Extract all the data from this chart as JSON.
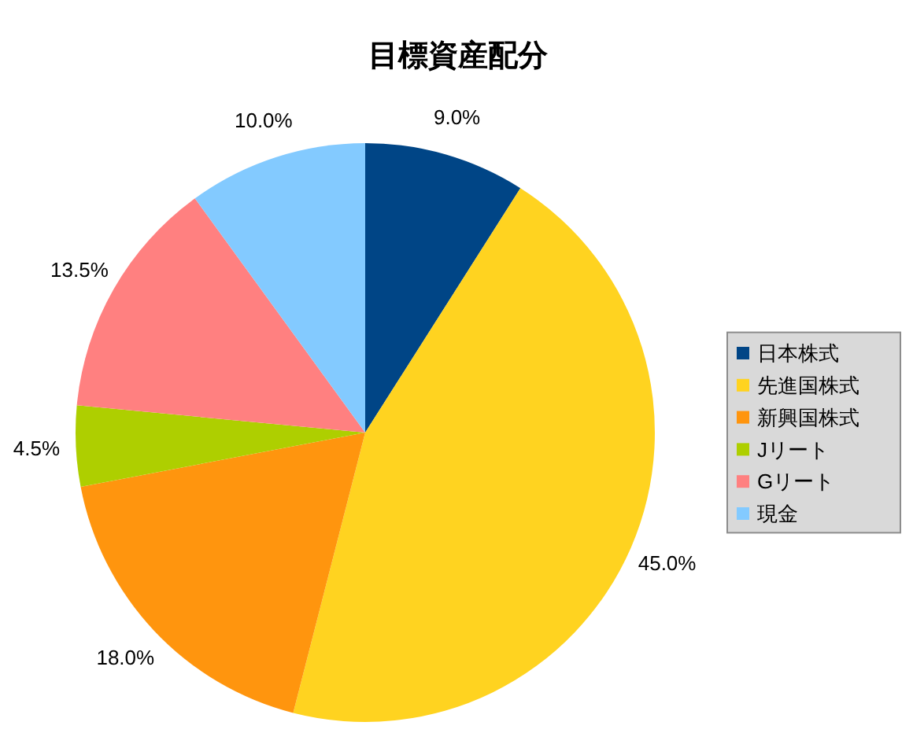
{
  "chart_data": {
    "type": "pie",
    "title": "目標資産配分",
    "categories": [
      "日本株式",
      "先進国株式",
      "新興国株式",
      "Jリート",
      "Gリート",
      "現金"
    ],
    "values": [
      9.0,
      45.0,
      18.0,
      4.5,
      13.5,
      10.0
    ],
    "colors": [
      "#004586",
      "#ffd320",
      "#ff950e",
      "#aecf00",
      "#ff8080",
      "#83caff"
    ],
    "value_labels": [
      "9.0%",
      "45.0%",
      "18.0%",
      "4.5%",
      "13.5%",
      "10.0%"
    ],
    "legend": "right"
  }
}
